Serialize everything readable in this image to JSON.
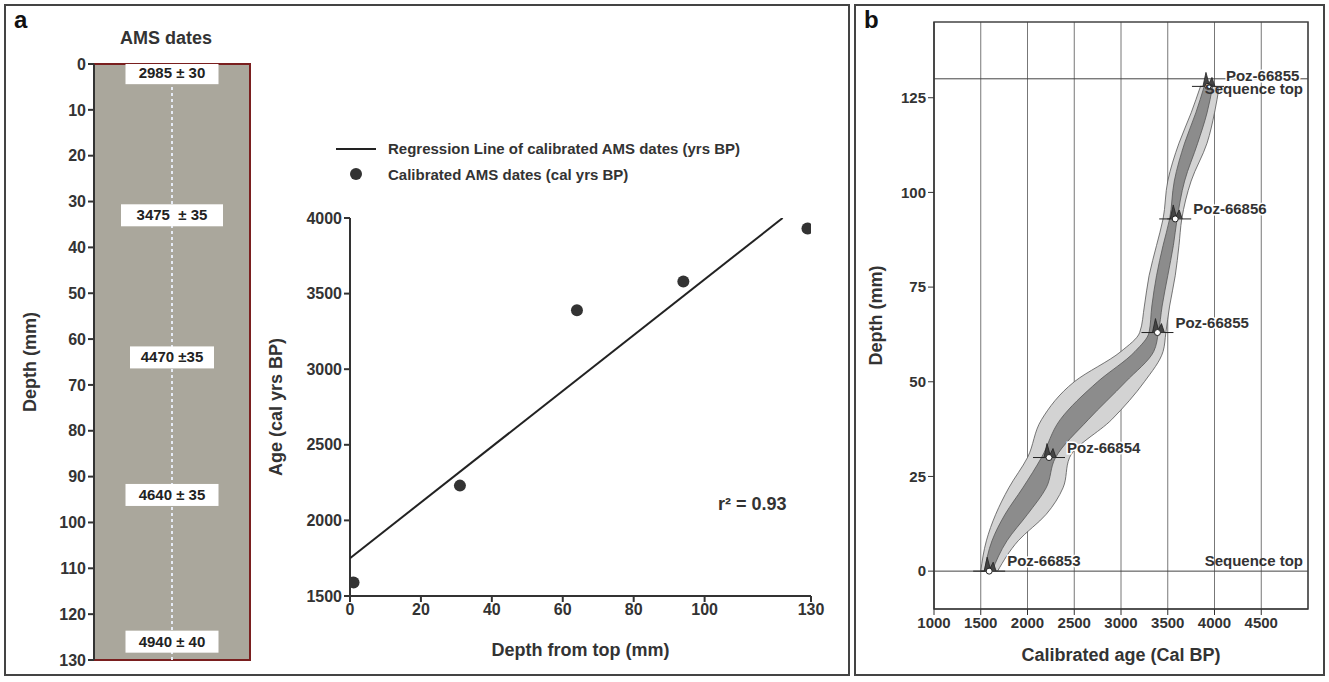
{
  "chart_data": [
    {
      "panel": "a",
      "type": "core",
      "title": "AMS dates",
      "y_label": "Depth (mm)",
      "ylim": [
        0,
        130
      ],
      "yticks": [
        0,
        10,
        20,
        30,
        40,
        50,
        60,
        70,
        80,
        90,
        100,
        110,
        120,
        130
      ],
      "annotations": [
        {
          "text": "2985 ± 30",
          "depth": 2
        },
        {
          "text": "3475  ± 35",
          "depth": 33
        },
        {
          "text": "4470 ±35",
          "depth": 64
        },
        {
          "text": "4640 ± 35",
          "depth": 94
        },
        {
          "text": "4940 ± 40",
          "depth": 126
        }
      ]
    },
    {
      "type": "scatter",
      "x_label": "Depth from top (mm)",
      "y_label": "Age (cal yrs BP)",
      "xlim": [
        0,
        130
      ],
      "xticks": [
        0,
        20,
        40,
        60,
        80,
        100,
        130
      ],
      "ylim": [
        1500,
        4000
      ],
      "yticks": [
        1500,
        2000,
        2500,
        3000,
        3500,
        4000
      ],
      "annotation": "r² = 0.93",
      "legend": "top",
      "series": [
        {
          "name": "Regression Line of calibrated AMS dates (yrs BP)",
          "type": "line",
          "color": "#222222",
          "x": [
            0,
            122
          ],
          "values": [
            1750,
            4000
          ]
        },
        {
          "name": "Calibrated AMS dates (cal yrs BP)",
          "type": "scatter",
          "marker": "circle",
          "color": "#333333",
          "x": [
            1,
            31,
            64,
            94,
            129
          ],
          "values": [
            1590,
            2230,
            3390,
            3580,
            3930
          ]
        }
      ]
    },
    {
      "panel": "b",
      "type": "age_depth_model",
      "x_label": "Calibrated age (Cal BP)",
      "y_label": "Depth (mm)",
      "xlim": [
        1000,
        5000
      ],
      "xticks": [
        1000,
        1500,
        2000,
        2500,
        3000,
        3500,
        4000,
        4500
      ],
      "ylim": [
        -10,
        145
      ],
      "yticks": [
        0,
        25,
        50,
        75,
        100,
        125
      ],
      "grid": true,
      "series": [
        {
          "type": "area",
          "color": "#d3d3d3",
          "depth": [
            0,
            8,
            15,
            22,
            30,
            40,
            50,
            58,
            63,
            70,
            78,
            86,
            93,
            103,
            113,
            121,
            128
          ],
          "min": [
            1500,
            1560,
            1660,
            1800,
            2000,
            2150,
            2500,
            3000,
            3200,
            3250,
            3300,
            3380,
            3450,
            3500,
            3620,
            3750,
            3850
          ],
          "max": [
            1680,
            1900,
            2200,
            2380,
            2450,
            2900,
            3250,
            3450,
            3480,
            3520,
            3580,
            3620,
            3650,
            3750,
            3920,
            4000,
            4050
          ]
        },
        {
          "type": "area",
          "color": "#8c8c8c",
          "depth": [
            0,
            8,
            15,
            22,
            30,
            40,
            50,
            58,
            63,
            70,
            78,
            86,
            93,
            103,
            113,
            121,
            128
          ],
          "min": [
            1540,
            1620,
            1760,
            1950,
            2150,
            2350,
            2750,
            3150,
            3300,
            3330,
            3380,
            3450,
            3520,
            3570,
            3680,
            3800,
            3890
          ],
          "max": [
            1620,
            1780,
            2000,
            2200,
            2300,
            2650,
            3050,
            3350,
            3400,
            3440,
            3500,
            3560,
            3600,
            3680,
            3820,
            3920,
            3980
          ]
        }
      ],
      "samples": [
        {
          "label": "Poz-66853",
          "age": 1590,
          "depth": 0
        },
        {
          "label": "Poz-66854",
          "age": 2230,
          "depth": 30
        },
        {
          "label": "Poz-66855",
          "age": 3390,
          "depth": 63
        },
        {
          "label": "Poz-66856",
          "age": 3580,
          "depth": 93
        },
        {
          "label": "Poz-66855",
          "age": 3930,
          "depth": 128
        }
      ],
      "reference_lines": [
        {
          "depth": 0,
          "label": "Sequence top"
        },
        {
          "depth": 130,
          "label": "Sequence top"
        }
      ]
    }
  ]
}
